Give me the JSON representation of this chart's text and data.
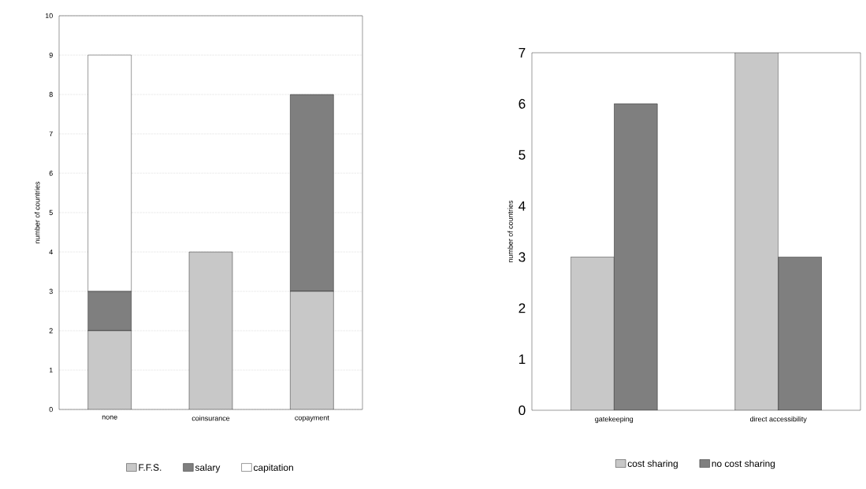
{
  "chart_data": [
    {
      "type": "bar",
      "stacked": true,
      "ylabel": "number of countries",
      "categories": [
        "none",
        "coinsurance",
        "copayment"
      ],
      "series": [
        {
          "name": "F.F.S.",
          "color": "#c8c8c8",
          "values": [
            2,
            4,
            3
          ]
        },
        {
          "name": "salary",
          "color": "#7f7f7f",
          "values": [
            1,
            0,
            5
          ]
        },
        {
          "name": "capitation",
          "color": "#ffffff",
          "values": [
            6,
            0,
            0
          ]
        }
      ],
      "ylim": [
        0,
        10
      ],
      "yticks": [
        0,
        1,
        2,
        3,
        4,
        5,
        6,
        7,
        8,
        9,
        10
      ],
      "grid": "y",
      "legend": "bottom"
    },
    {
      "type": "bar",
      "ylabel": "number of countries",
      "categories": [
        "gatekeeping",
        "direct accessibility"
      ],
      "series": [
        {
          "name": "cost sharing",
          "color": "#c8c8c8",
          "values": [
            3,
            7
          ]
        },
        {
          "name": "no cost sharing",
          "color": "#7f7f7f",
          "values": [
            6,
            3
          ]
        }
      ],
      "ylim": [
        0,
        7
      ],
      "yticks": [
        0,
        1,
        2,
        3,
        4,
        5,
        6,
        7
      ],
      "legend": "bottom"
    }
  ]
}
